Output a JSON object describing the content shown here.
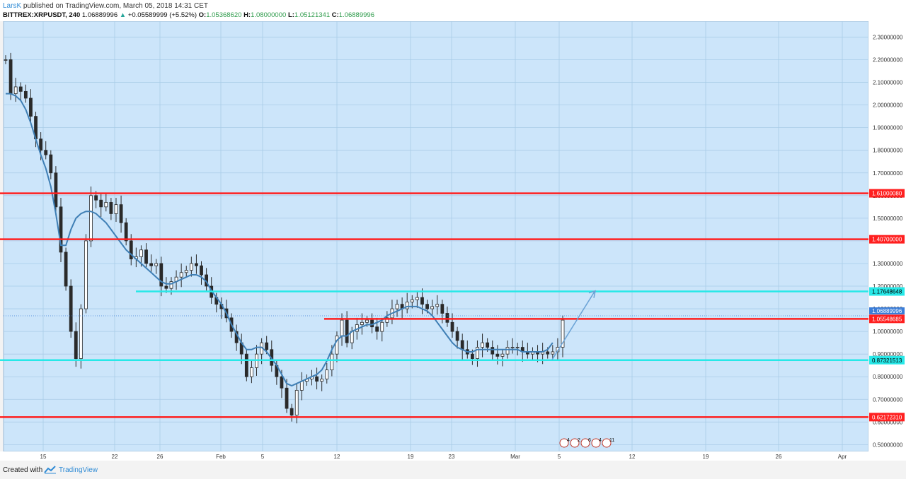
{
  "header": {
    "author": "LarsK",
    "published": "published on TradingView.com, March 05, 2018 14:31 CET",
    "symbol": "BITTREX:XRPUSDT, 240",
    "last": "1.06889996",
    "arrow": "▲",
    "change": "+0.05589999 (+5.52%)",
    "o_label": "O:",
    "o_val": "1.05368620",
    "h_label": "H:",
    "h_val": "1.08000000",
    "l_label": "L:",
    "l_val": "1.05121341",
    "c_label": "C:",
    "c_val": "1.06889996"
  },
  "footer": {
    "created": "Created with",
    "brand": "TradingView"
  },
  "chart_data": {
    "type": "line",
    "title": "",
    "series": [
      {
        "values": [
          2.2,
          2.05,
          2.08,
          2.06,
          2.03,
          1.95,
          1.85,
          1.8,
          1.78,
          1.7,
          1.55,
          1.35,
          1.2,
          1.0,
          0.88,
          1.1,
          1.4,
          1.6,
          1.58,
          1.55,
          1.57,
          1.52,
          1.56,
          1.48,
          1.4,
          1.32,
          1.33,
          1.36,
          1.3,
          1.29,
          1.3,
          1.2,
          1.19,
          1.22,
          1.24,
          1.26,
          1.27,
          1.3,
          1.29,
          1.25,
          1.2,
          1.15,
          1.12,
          1.1,
          1.06,
          1.0,
          0.95,
          0.9,
          0.8,
          0.84,
          0.9,
          0.95,
          0.92,
          0.85,
          0.8,
          0.75,
          0.66,
          0.63,
          0.74,
          0.78,
          0.79,
          0.8,
          0.78,
          0.79,
          0.83,
          0.9,
          0.98,
          1.05,
          0.95,
          1.0,
          1.03,
          1.04,
          1.05,
          1.02,
          1.0,
          1.04,
          1.06,
          1.1,
          1.12,
          1.1,
          1.13,
          1.14,
          1.15,
          1.12,
          1.1,
          1.11,
          1.12,
          1.08,
          1.04,
          1.0,
          0.96,
          0.92,
          0.9,
          0.88,
          0.93,
          0.95,
          0.93,
          0.9,
          0.89,
          0.9,
          0.93,
          0.93,
          0.93,
          0.91,
          0.9,
          0.91,
          0.9,
          0.91,
          0.9,
          0.91,
          0.93,
          1.05
        ],
        "ma": [
          2.05,
          2.05,
          2.04,
          2.02,
          1.98,
          1.92,
          1.85,
          1.78,
          1.72,
          1.64,
          1.52,
          1.38,
          1.38,
          1.45,
          1.5,
          1.52,
          1.53,
          1.53,
          1.52,
          1.5,
          1.48,
          1.45,
          1.42,
          1.39,
          1.36,
          1.34,
          1.32,
          1.3,
          1.28,
          1.26,
          1.24,
          1.22,
          1.21,
          1.21,
          1.22,
          1.23,
          1.24,
          1.25,
          1.25,
          1.24,
          1.22,
          1.18,
          1.15,
          1.12,
          1.08,
          1.03,
          0.99,
          0.95,
          0.92,
          0.92,
          0.93,
          0.93,
          0.91,
          0.88,
          0.85,
          0.81,
          0.77,
          0.76,
          0.77,
          0.78,
          0.79,
          0.8,
          0.81,
          0.83,
          0.87,
          0.92,
          0.96,
          0.98,
          0.98,
          1.0,
          1.01,
          1.02,
          1.03,
          1.03,
          1.04,
          1.05,
          1.07,
          1.08,
          1.09,
          1.1,
          1.11,
          1.11,
          1.11,
          1.1,
          1.09,
          1.07,
          1.04,
          1.01,
          0.98,
          0.95,
          0.93,
          0.92,
          0.91,
          0.91,
          0.92,
          0.92,
          0.92,
          0.92,
          0.92,
          0.92,
          0.92,
          0.92,
          0.92,
          0.91,
          0.91,
          0.91,
          0.91,
          0.91,
          0.92,
          0.95
        ]
      }
    ],
    "x_ticks": [
      "15",
      "22",
      "26",
      "Feb",
      "5",
      "12",
      "19",
      "23",
      "Mar",
      "5",
      "12",
      "19",
      "26",
      "Apr"
    ],
    "y_ticks": [
      "0.50000000",
      "0.60000000",
      "0.70000000",
      "0.80000000",
      "0.90000000",
      "1.00000000",
      "1.10000000",
      "1.20000000",
      "1.30000000",
      "1.40000000",
      "1.50000000",
      "1.60000000",
      "1.70000000",
      "1.80000000",
      "1.90000000",
      "2.00000000",
      "2.10000000",
      "2.20000000",
      "2.30000000"
    ],
    "ylim": [
      0.47,
      2.37
    ],
    "levels": [
      {
        "value": 1.61,
        "label": "1.61000080",
        "color": "#ff1f1f"
      },
      {
        "value": 1.407,
        "label": "1.40700000",
        "color": "#ff1f1f"
      },
      {
        "value": 1.17648648,
        "label": "1.17648648",
        "color": "#27e8e8"
      },
      {
        "value": 1.05548685,
        "label": "1.05548685",
        "color": "#ff1f1f"
      },
      {
        "value": 0.87321513,
        "label": "0.87321513",
        "color": "#27e8e8"
      },
      {
        "value": 0.6217231,
        "label": "0.62172310",
        "color": "#ff1f1f"
      }
    ],
    "last_price": {
      "value": 1.06889996,
      "label": "1.06889996"
    },
    "event_markers": [
      "4",
      "2",
      "6",
      "4",
      "11"
    ],
    "colors": {
      "background": "#cce5fa",
      "up": "#2a2a2a",
      "down": "#2a2a2a",
      "ma": "#3f7fb5",
      "arrow": "#6ba3d6",
      "grid": "#a9cce8"
    }
  }
}
